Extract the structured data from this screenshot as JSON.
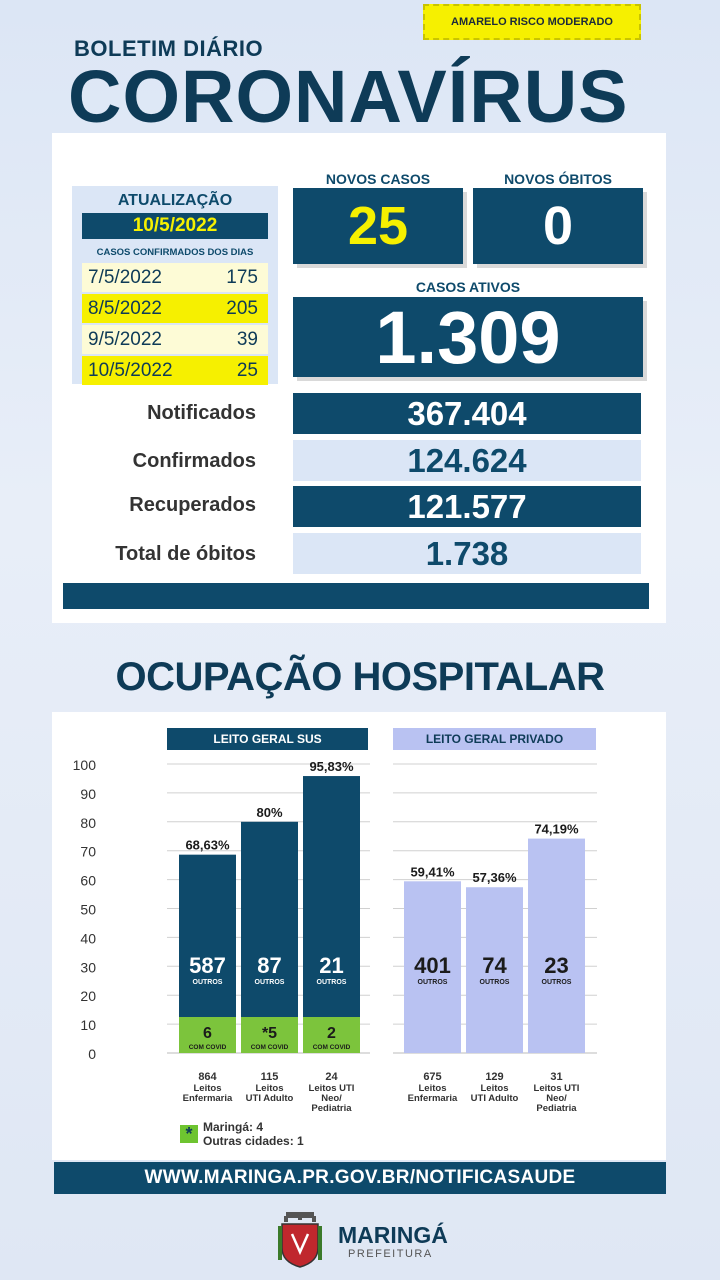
{
  "header": {
    "risk_badge": "AMARELO RISCO MODERADO",
    "subtitle": "BOLETIM DIÁRIO",
    "title": "CORONAVÍRUS"
  },
  "update": {
    "title": "ATUALIZAÇÃO",
    "date": "10/5/2022",
    "subtitle": "CASOS CONFIRMADOS DOS DIAS",
    "days": [
      {
        "date": "7/5/2022",
        "value": "175"
      },
      {
        "date": "8/5/2022",
        "value": "205"
      },
      {
        "date": "9/5/2022",
        "value": "39"
      },
      {
        "date": "10/5/2022",
        "value": "25"
      }
    ]
  },
  "new_cases": {
    "label": "NOVOS CASOS",
    "value": "25"
  },
  "new_deaths": {
    "label": "NOVOS ÓBITOS",
    "value": "0"
  },
  "active_cases": {
    "label": "CASOS ATIVOS",
    "value": "1.309"
  },
  "stats": [
    {
      "label": "Notificados",
      "value": "367.404"
    },
    {
      "label": "Confirmados",
      "value": "124.624"
    },
    {
      "label": "Recuperados",
      "value": "121.577"
    },
    {
      "label": "Total de óbitos",
      "value": "1.738"
    }
  ],
  "occupancy_title": "OCUPAÇÃO HOSPITALAR",
  "chart_data": {
    "type": "bar",
    "ylim": [
      0,
      100
    ],
    "yticks": [
      "0",
      "10",
      "20",
      "30",
      "40",
      "50",
      "60",
      "70",
      "80",
      "90",
      "100"
    ],
    "groups": [
      {
        "name": "LEITO GERAL SUS",
        "color": "#0e4a6b",
        "bars": [
          {
            "pct": 68.63,
            "pct_label": "68,63%",
            "others": "587",
            "others_label": "OUTROS",
            "covid": "6",
            "covid_label": "COM COVID",
            "beds": "864",
            "category": [
              "Leitos",
              "Enfermaria"
            ]
          },
          {
            "pct": 80,
            "pct_label": "80%",
            "others": "87",
            "others_label": "OUTROS",
            "covid": "*5",
            "covid_label": "COM COVID",
            "beds": "115",
            "category": [
              "Leitos",
              "UTI Adulto"
            ]
          },
          {
            "pct": 95.83,
            "pct_label": "95,83%",
            "others": "21",
            "others_label": "OUTROS",
            "covid": "2",
            "covid_label": "COM COVID",
            "beds": "24",
            "category": [
              "Leitos UTI",
              "Neo/",
              "Pediatria"
            ]
          }
        ]
      },
      {
        "name": "LEITO GERAL PRIVADO",
        "color": "#b9c2f2",
        "bars": [
          {
            "pct": 59.41,
            "pct_label": "59,41%",
            "others": "401",
            "others_label": "OUTROS",
            "beds": "675",
            "category": [
              "Leitos",
              "Enfermaria"
            ]
          },
          {
            "pct": 57.36,
            "pct_label": "57,36%",
            "others": "74",
            "others_label": "OUTROS",
            "beds": "129",
            "category": [
              "Leitos",
              "UTI Adulto"
            ]
          },
          {
            "pct": 74.19,
            "pct_label": "74,19%",
            "others": "23",
            "others_label": "OUTROS",
            "beds": "31",
            "category": [
              "Leitos UTI",
              "Neo/",
              "Pediatria"
            ]
          }
        ]
      }
    ],
    "covid_color": "#7cc43c"
  },
  "legend": {
    "symbol": "*",
    "line1": "Maringá: 4",
    "line2": "Outras cidades: 1"
  },
  "footer": {
    "url": "WWW.MARINGA.PR.GOV.BR/NOTIFICASAUDE",
    "logo_name": "MARINGÁ",
    "logo_sub": "PREFEITURA"
  }
}
